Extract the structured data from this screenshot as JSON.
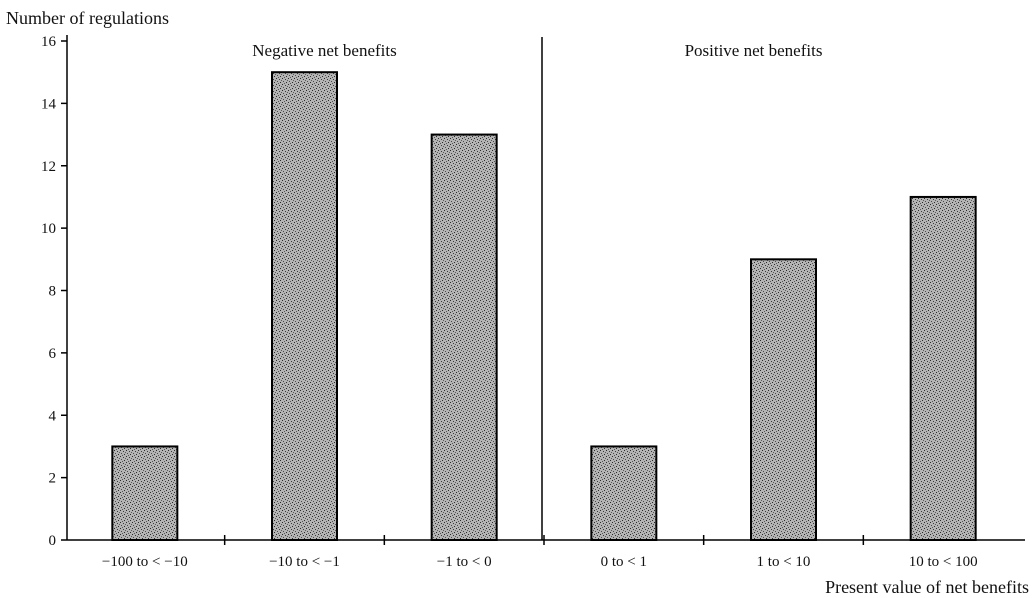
{
  "chart_data": {
    "type": "bar",
    "ylabel": "Number of regulations",
    "xlabel": "Present value of net benefits",
    "categories": [
      "−100 to < −10",
      "−10 to < −1",
      "−1 to < 0",
      "0 to < 1",
      "1 to < 10",
      "10 to < 100"
    ],
    "values": [
      3,
      15,
      13,
      3,
      9,
      11
    ],
    "ylim": [
      0,
      16
    ],
    "yticks": [
      0,
      2,
      4,
      6,
      8,
      10,
      12,
      14,
      16
    ],
    "regions": [
      {
        "label": "Negative net benefits",
        "categories": [
          0,
          1,
          2
        ]
      },
      {
        "label": "Positive net benefits",
        "categories": [
          3,
          4,
          5
        ]
      }
    ],
    "grid": false,
    "bar_fill": "stippled gray",
    "colors": {
      "bar": "#9a9a9a",
      "axis": "#000000",
      "text": "#111111"
    }
  }
}
